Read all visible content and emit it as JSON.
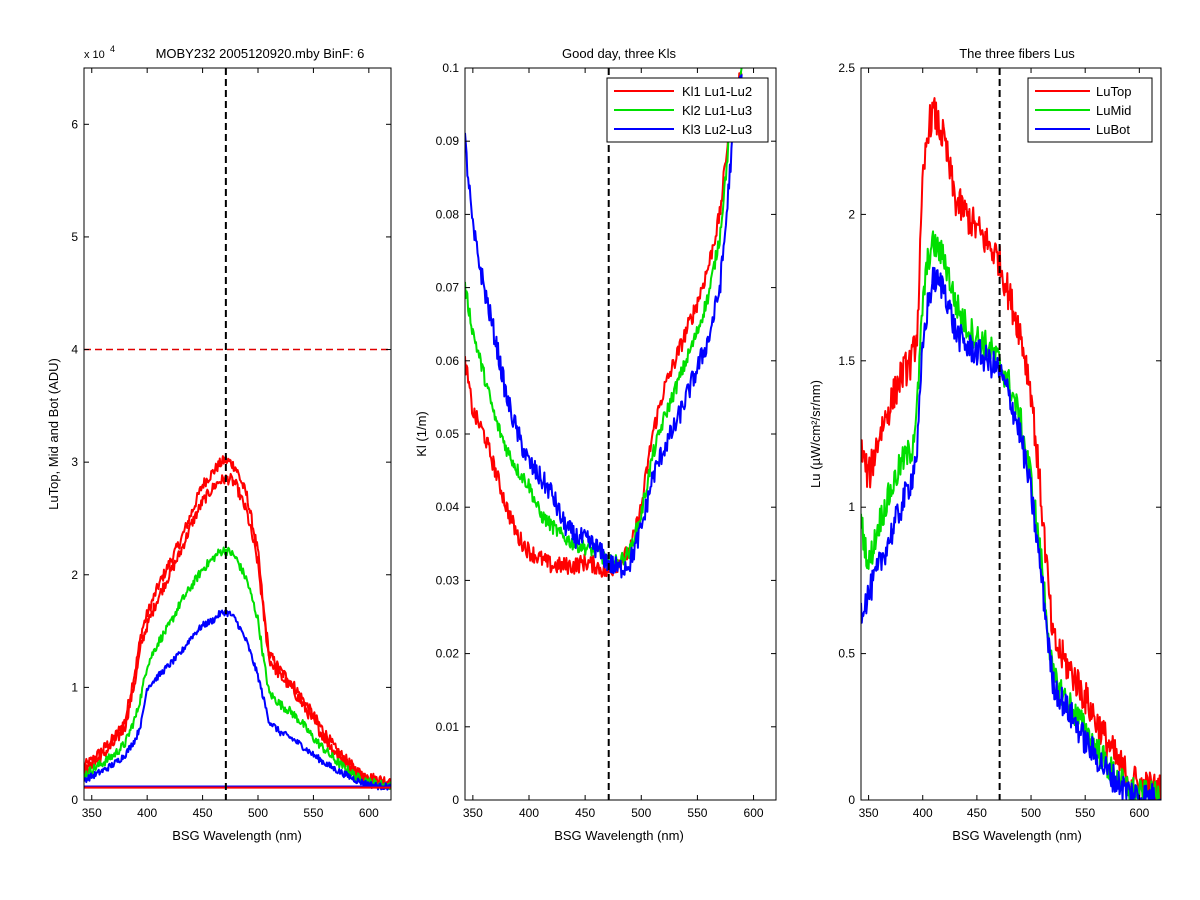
{
  "chart_data": [
    {
      "type": "line",
      "title": "MOBY232  2005120920.mby BinF: 6",
      "multiplier": "x 10",
      "multiplier_exp": "4",
      "xlabel": "BSG Wavelength (nm)",
      "ylabel": "LuTop, Mid and Bot (ADU)",
      "xlim": [
        343,
        620
      ],
      "ylim": [
        0,
        6.5
      ],
      "xticks": [
        350,
        400,
        450,
        500,
        550,
        600
      ],
      "yticks": [
        0,
        1,
        2,
        3,
        4,
        5,
        6
      ],
      "xtick_labels": [
        "350",
        "400",
        "450",
        "500",
        "550",
        "600"
      ],
      "ytick_labels": [
        "0",
        "1",
        "2",
        "3",
        "4",
        "5",
        "6"
      ],
      "grid": false,
      "vline": 471,
      "hline": 4.0,
      "hline_color": "#e00000",
      "series": [
        {
          "color": "#ff0000",
          "noise": 0.05,
          "x": [
            343,
            350,
            360,
            370,
            380,
            390,
            395,
            400,
            410,
            420,
            430,
            440,
            450,
            460,
            465,
            470,
            475,
            480,
            490,
            500,
            505,
            510,
            520,
            530,
            540,
            550,
            560,
            570,
            580,
            590,
            600,
            610,
            620
          ],
          "y": [
            0.3,
            0.35,
            0.45,
            0.55,
            0.7,
            1.2,
            1.5,
            1.65,
            1.9,
            2.1,
            2.3,
            2.55,
            2.8,
            2.92,
            2.98,
            3.02,
            3.0,
            2.95,
            2.7,
            2.2,
            1.7,
            1.3,
            1.15,
            1.05,
            0.9,
            0.75,
            0.6,
            0.45,
            0.35,
            0.25,
            0.2,
            0.18,
            0.17
          ]
        },
        {
          "color": "#ff0000",
          "noise": 0.05,
          "x": [
            343,
            350,
            360,
            370,
            380,
            390,
            395,
            400,
            410,
            420,
            430,
            440,
            450,
            460,
            465,
            470,
            475,
            480,
            490,
            500,
            505,
            510,
            520,
            530,
            540,
            550,
            560,
            570,
            580,
            590,
            600,
            610,
            620
          ],
          "y": [
            0.25,
            0.3,
            0.4,
            0.5,
            0.65,
            1.1,
            1.4,
            1.55,
            1.8,
            2.0,
            2.2,
            2.45,
            2.65,
            2.78,
            2.83,
            2.85,
            2.85,
            2.8,
            2.55,
            2.1,
            1.65,
            1.25,
            1.1,
            1.0,
            0.85,
            0.7,
            0.55,
            0.42,
            0.32,
            0.23,
            0.18,
            0.16,
            0.15
          ]
        },
        {
          "color": "#00e000",
          "noise": 0.04,
          "x": [
            343,
            350,
            360,
            370,
            380,
            390,
            395,
            400,
            410,
            420,
            430,
            440,
            450,
            460,
            465,
            470,
            475,
            480,
            490,
            500,
            505,
            510,
            520,
            530,
            540,
            550,
            560,
            570,
            580,
            590,
            600,
            610,
            620
          ],
          "y": [
            0.22,
            0.27,
            0.33,
            0.4,
            0.5,
            0.75,
            0.95,
            1.2,
            1.4,
            1.55,
            1.75,
            1.9,
            2.05,
            2.15,
            2.2,
            2.22,
            2.2,
            2.15,
            1.95,
            1.6,
            1.25,
            0.95,
            0.85,
            0.78,
            0.68,
            0.55,
            0.45,
            0.35,
            0.27,
            0.2,
            0.16,
            0.14,
            0.13
          ]
        },
        {
          "color": "#0000ff",
          "noise": 0.03,
          "x": [
            343,
            350,
            360,
            370,
            380,
            390,
            395,
            400,
            410,
            420,
            430,
            440,
            450,
            460,
            465,
            470,
            475,
            480,
            490,
            500,
            505,
            510,
            520,
            530,
            540,
            550,
            560,
            570,
            580,
            590,
            600,
            610,
            620
          ],
          "y": [
            0.18,
            0.21,
            0.26,
            0.32,
            0.4,
            0.55,
            0.7,
            1.0,
            1.1,
            1.2,
            1.3,
            1.45,
            1.55,
            1.6,
            1.65,
            1.67,
            1.65,
            1.6,
            1.4,
            1.1,
            0.9,
            0.7,
            0.6,
            0.55,
            0.48,
            0.4,
            0.33,
            0.27,
            0.22,
            0.17,
            0.14,
            0.12,
            0.12
          ]
        },
        {
          "color": "#0000ff",
          "noise": 0.0,
          "x": [
            343,
            620
          ],
          "y": [
            0.12,
            0.12
          ]
        },
        {
          "color": "#ff0000",
          "noise": 0.0,
          "x": [
            343,
            620
          ],
          "y": [
            0.11,
            0.11
          ]
        }
      ]
    },
    {
      "type": "line",
      "title": "Good day, three Kls",
      "xlabel": "BSG Wavelength (nm)",
      "ylabel": "Kl (1/m)",
      "xlim": [
        343,
        620
      ],
      "ylim": [
        0,
        0.1
      ],
      "xticks": [
        350,
        400,
        450,
        500,
        550,
        600
      ],
      "yticks": [
        0,
        0.01,
        0.02,
        0.03,
        0.04,
        0.05,
        0.06,
        0.07,
        0.08,
        0.09,
        0.1
      ],
      "xtick_labels": [
        "350",
        "400",
        "450",
        "500",
        "550",
        "600"
      ],
      "ytick_labels": [
        "0",
        "0.01",
        "0.02",
        "0.03",
        "0.04",
        "0.05",
        "0.06",
        "0.07",
        "0.08",
        "0.09",
        "0.1"
      ],
      "grid": false,
      "vline": 471,
      "legend_position": "top-right",
      "series": [
        {
          "name": "Kl1 Lu1-Lu2",
          "color": "#ff0000",
          "noise": 0.0012,
          "x": [
            343,
            350,
            360,
            370,
            380,
            390,
            400,
            410,
            420,
            430,
            440,
            450,
            460,
            470,
            480,
            490,
            500,
            510,
            520,
            530,
            540,
            550,
            560,
            570,
            575,
            580,
            590
          ],
          "y": [
            0.06,
            0.053,
            0.05,
            0.045,
            0.04,
            0.036,
            0.034,
            0.033,
            0.032,
            0.032,
            0.032,
            0.0325,
            0.032,
            0.031,
            0.0325,
            0.034,
            0.04,
            0.05,
            0.056,
            0.06,
            0.064,
            0.068,
            0.073,
            0.08,
            0.087,
            0.095,
            0.1
          ]
        },
        {
          "name": "Kl2 Lu1-Lu3",
          "color": "#00e000",
          "noise": 0.001,
          "x": [
            343,
            350,
            360,
            370,
            380,
            390,
            400,
            410,
            420,
            430,
            440,
            450,
            460,
            470,
            480,
            490,
            500,
            510,
            520,
            530,
            540,
            550,
            560,
            570,
            575,
            580,
            590
          ],
          "y": [
            0.07,
            0.064,
            0.058,
            0.052,
            0.048,
            0.045,
            0.043,
            0.039,
            0.0375,
            0.036,
            0.035,
            0.0345,
            0.034,
            0.0325,
            0.0325,
            0.034,
            0.039,
            0.047,
            0.052,
            0.056,
            0.06,
            0.064,
            0.069,
            0.077,
            0.085,
            0.093,
            0.1
          ]
        },
        {
          "name": "Kl3 Lu2-Lu3",
          "color": "#0000ff",
          "noise": 0.0015,
          "x": [
            343,
            350,
            360,
            370,
            380,
            390,
            400,
            410,
            420,
            430,
            440,
            450,
            460,
            470,
            480,
            490,
            500,
            510,
            520,
            530,
            540,
            550,
            560,
            570,
            575,
            580,
            590
          ],
          "y": [
            0.09,
            0.078,
            0.07,
            0.063,
            0.055,
            0.05,
            0.046,
            0.044,
            0.042,
            0.038,
            0.036,
            0.0355,
            0.0345,
            0.0325,
            0.0315,
            0.0325,
            0.037,
            0.044,
            0.048,
            0.051,
            0.055,
            0.059,
            0.063,
            0.07,
            0.078,
            0.088,
            0.1
          ]
        }
      ]
    },
    {
      "type": "line",
      "title": "The three fibers Lus",
      "xlabel": "BSG Wavelength (nm)",
      "ylabel": "Lu (µW/cm²/sr/nm)",
      "xlim": [
        343,
        620
      ],
      "ylim": [
        0,
        2.5
      ],
      "xticks": [
        350,
        400,
        450,
        500,
        550,
        600
      ],
      "yticks": [
        0,
        0.5,
        1,
        1.5,
        2,
        2.5
      ],
      "xtick_labels": [
        "350",
        "400",
        "450",
        "500",
        "550",
        "600"
      ],
      "ytick_labels": [
        "0",
        "0.5",
        "1",
        "1.5",
        "2",
        "2.5"
      ],
      "grid": false,
      "vline": 471,
      "legend_position": "top-right",
      "series": [
        {
          "name": "LuTop",
          "color": "#ff0000",
          "noise": 0.06,
          "x": [
            343,
            350,
            360,
            370,
            380,
            390,
            395,
            400,
            405,
            410,
            420,
            430,
            440,
            450,
            460,
            470,
            480,
            490,
            500,
            510,
            520,
            530,
            540,
            550,
            560,
            570,
            580,
            590,
            600,
            610,
            620
          ],
          "y": [
            1.2,
            1.1,
            1.25,
            1.35,
            1.45,
            1.5,
            1.6,
            2.1,
            2.3,
            2.35,
            2.25,
            2.05,
            2.0,
            1.95,
            1.9,
            1.85,
            1.72,
            1.6,
            1.4,
            1.0,
            0.55,
            0.48,
            0.42,
            0.35,
            0.27,
            0.2,
            0.13,
            0.08,
            0.05,
            0.04,
            0.03
          ]
        },
        {
          "name": "LuMid",
          "color": "#00e000",
          "noise": 0.05,
          "x": [
            343,
            350,
            360,
            370,
            380,
            390,
            395,
            400,
            405,
            410,
            420,
            430,
            440,
            450,
            460,
            470,
            480,
            490,
            500,
            510,
            520,
            530,
            540,
            550,
            560,
            570,
            580,
            590,
            600,
            610,
            620
          ],
          "y": [
            0.95,
            0.8,
            0.95,
            1.05,
            1.15,
            1.2,
            1.35,
            1.7,
            1.85,
            1.9,
            1.85,
            1.7,
            1.62,
            1.58,
            1.55,
            1.5,
            1.42,
            1.3,
            1.1,
            0.8,
            0.42,
            0.36,
            0.3,
            0.24,
            0.18,
            0.12,
            0.07,
            0.04,
            0.02,
            0.015,
            0.01
          ]
        },
        {
          "name": "LuBot",
          "color": "#0000ff",
          "noise": 0.05,
          "x": [
            343,
            350,
            360,
            370,
            380,
            390,
            395,
            400,
            405,
            410,
            420,
            430,
            440,
            450,
            460,
            470,
            480,
            490,
            500,
            510,
            520,
            530,
            540,
            550,
            560,
            570,
            580,
            590,
            600,
            610,
            620
          ],
          "y": [
            0.65,
            0.7,
            0.8,
            0.9,
            1.0,
            1.1,
            1.2,
            1.55,
            1.7,
            1.78,
            1.75,
            1.6,
            1.55,
            1.53,
            1.5,
            1.47,
            1.38,
            1.25,
            1.05,
            0.75,
            0.4,
            0.33,
            0.27,
            0.2,
            0.15,
            0.1,
            0.06,
            0.03,
            0.015,
            0.01,
            0.01
          ]
        }
      ]
    }
  ]
}
